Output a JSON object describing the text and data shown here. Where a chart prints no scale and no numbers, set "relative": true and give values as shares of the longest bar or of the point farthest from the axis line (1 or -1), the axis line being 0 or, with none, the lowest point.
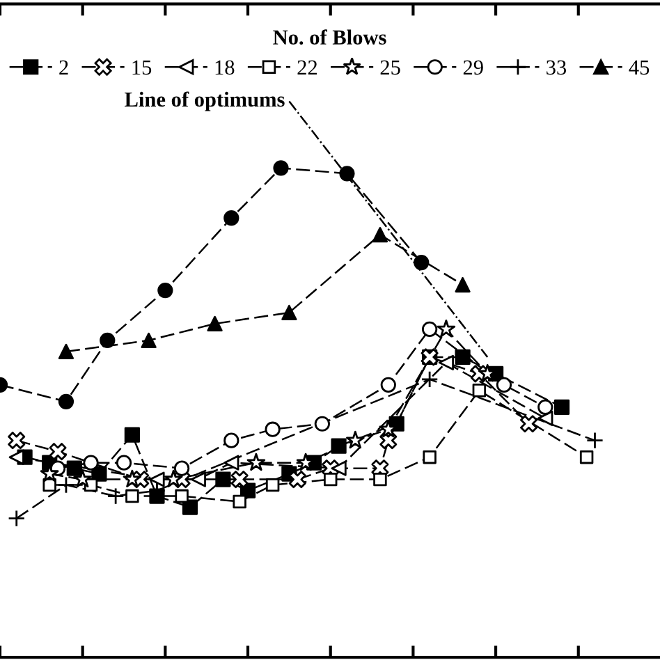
{
  "chart_data": {
    "type": "line",
    "relative": true,
    "legend_title": "No. of Blows",
    "legend": "top",
    "grid": false,
    "line_style": "dashed",
    "categories": [
      null,
      null,
      null,
      null,
      null,
      null,
      null,
      null,
      null,
      null,
      null,
      null,
      null,
      null,
      null,
      null,
      null,
      null,
      null,
      null,
      null,
      null,
      null,
      null,
      null,
      null,
      null,
      null,
      null,
      null,
      null,
      null,
      null,
      null,
      null,
      null,
      null,
      null,
      null,
      null,
      null,
      null,
      null,
      null,
      null,
      null,
      null,
      null,
      null,
      null,
      null,
      null,
      null,
      null,
      null,
      null,
      null,
      null,
      null,
      null,
      null,
      null,
      null,
      null,
      null,
      null,
      null,
      null,
      null,
      null,
      null,
      null,
      null,
      null,
      null,
      null,
      null,
      null,
      null,
      null
    ],
    "series": [
      {
        "name": "2",
        "color": "#000000",
        "marker": "square",
        "values": [
          null,
          null,
          null,
          0.36,
          null,
          null,
          0.35,
          null,
          null,
          0.34,
          null,
          null,
          0.33,
          null,
          null,
          null,
          0.4,
          null,
          null,
          0.29,
          null,
          null,
          null,
          0.27,
          null,
          null,
          null,
          0.32,
          null,
          null,
          0.3,
          null,
          null,
          null,
          null,
          0.33,
          null,
          null,
          0.35,
          null,
          null,
          0.38,
          null,
          null,
          null,
          null,
          null,
          null,
          0.42,
          null,
          null,
          null,
          0.54,
          null,
          null,
          null,
          0.54,
          null,
          null,
          null,
          0.51,
          null,
          null,
          null,
          null,
          null,
          null,
          null,
          0.45,
          null,
          null,
          null,
          null,
          null,
          null,
          null,
          null,
          null,
          null,
          null
        ]
      },
      {
        "name": "15",
        "color": "#000000",
        "marker": "cross",
        "values": [
          null,
          null,
          0.39,
          null,
          null,
          null,
          null,
          0.37,
          null,
          null,
          null,
          null,
          null,
          null,
          null,
          null,
          null,
          0.32,
          null,
          null,
          null,
          null,
          0.32,
          null,
          null,
          null,
          null,
          null,
          null,
          0.32,
          null,
          null,
          null,
          null,
          null,
          null,
          0.32,
          null,
          null,
          null,
          0.34,
          null,
          null,
          null,
          null,
          null,
          0.34,
          0.39,
          null,
          null,
          null,
          null,
          0.54,
          null,
          null,
          null,
          null,
          null,
          0.51,
          null,
          null,
          null,
          null,
          null,
          0.42,
          null,
          null,
          null,
          null,
          null,
          null,
          null,
          null,
          null,
          null,
          null,
          null,
          null,
          null,
          null
        ]
      },
      {
        "name": "18",
        "color": "#000000",
        "marker": "triangle_left_open",
        "values": [
          null,
          null,
          0.36,
          null,
          null,
          null,
          null,
          null,
          null,
          null,
          null,
          null,
          null,
          null,
          null,
          null,
          null,
          null,
          null,
          0.32,
          null,
          null,
          null,
          null,
          0.32,
          null,
          null,
          null,
          0.35,
          null,
          null,
          null,
          null,
          null,
          null,
          null,
          null,
          null,
          null,
          null,
          null,
          0.34,
          null,
          null,
          null,
          null,
          null,
          null,
          null,
          null,
          null,
          null,
          null,
          null,
          0.53,
          null,
          null,
          null,
          null,
          null,
          null,
          null,
          null,
          null,
          null,
          null,
          0.43,
          null,
          null,
          null,
          null,
          null,
          null,
          null,
          null,
          null,
          null,
          null,
          null,
          null
        ]
      },
      {
        "name": "22",
        "color": "#000000",
        "marker": "square_open",
        "values": [
          null,
          null,
          null,
          null,
          null,
          null,
          0.31,
          null,
          null,
          null,
          null,
          0.31,
          null,
          null,
          null,
          null,
          0.29,
          null,
          null,
          null,
          null,
          null,
          0.29,
          null,
          null,
          null,
          null,
          null,
          null,
          0.28,
          null,
          null,
          null,
          0.31,
          null,
          null,
          null,
          null,
          null,
          null,
          0.32,
          null,
          null,
          null,
          null,
          null,
          0.32,
          null,
          null,
          null,
          null,
          null,
          0.36,
          null,
          null,
          null,
          null,
          null,
          0.48,
          null,
          null,
          null,
          null,
          null,
          null,
          null,
          null,
          null,
          null,
          null,
          null,
          0.36,
          null,
          null,
          null,
          null,
          null,
          null,
          null,
          null
        ]
      },
      {
        "name": "25",
        "color": "#000000",
        "marker": "star_open",
        "values": [
          null,
          null,
          null,
          null,
          null,
          null,
          0.33,
          null,
          null,
          null,
          0.32,
          null,
          null,
          null,
          null,
          null,
          0.32,
          null,
          null,
          null,
          null,
          0.32,
          null,
          null,
          null,
          null,
          null,
          null,
          null,
          null,
          null,
          0.35,
          null,
          null,
          null,
          null,
          null,
          0.35,
          null,
          null,
          null,
          null,
          null,
          0.39,
          null,
          null,
          null,
          0.41,
          null,
          null,
          null,
          null,
          null,
          null,
          0.59,
          null,
          null,
          null,
          null,
          0.51,
          null,
          null,
          null,
          null,
          null,
          null,
          null,
          null,
          null,
          null,
          null,
          null,
          null,
          null,
          null,
          null,
          null,
          null,
          null,
          null
        ]
      },
      {
        "name": "29",
        "color": "#000000",
        "marker": "circle_open",
        "values": [
          null,
          null,
          null,
          null,
          null,
          null,
          null,
          0.34,
          null,
          null,
          null,
          0.35,
          null,
          null,
          null,
          0.35,
          null,
          null,
          null,
          null,
          null,
          null,
          0.34,
          null,
          null,
          null,
          null,
          null,
          0.39,
          null,
          null,
          null,
          null,
          0.41,
          null,
          null,
          null,
          null,
          null,
          0.42,
          null,
          null,
          null,
          null,
          null,
          null,
          null,
          0.49,
          null,
          null,
          null,
          null,
          0.59,
          null,
          null,
          null,
          null,
          null,
          null,
          null,
          null,
          0.49,
          null,
          null,
          null,
          null,
          0.45,
          null,
          null,
          null,
          null,
          null,
          null,
          null,
          null,
          null,
          null,
          null,
          null,
          null
        ]
      },
      {
        "name": "33",
        "color": "#000000",
        "marker": "plus",
        "values": [
          null,
          null,
          0.25,
          null,
          null,
          null,
          null,
          null,
          0.31,
          null,
          null,
          null,
          null,
          null,
          0.29,
          null,
          null,
          null,
          null,
          0.3,
          null,
          null,
          null,
          null,
          null,
          null,
          null,
          null,
          null,
          null,
          null,
          null,
          null,
          null,
          null,
          null,
          null,
          null,
          null,
          null,
          null,
          null,
          null,
          null,
          null,
          null,
          null,
          null,
          null,
          null,
          null,
          null,
          0.5,
          null,
          null,
          null,
          null,
          null,
          null,
          null,
          null,
          null,
          null,
          null,
          null,
          null,
          null,
          null,
          null,
          null,
          null,
          null,
          0.39,
          null,
          null,
          null,
          null,
          null,
          null,
          null
        ]
      },
      {
        "name": "45",
        "color": "#000000",
        "marker": "triangle",
        "values": [
          null,
          null,
          null,
          null,
          null,
          null,
          null,
          null,
          0.55,
          null,
          null,
          null,
          null,
          null,
          null,
          null,
          null,
          null,
          0.57,
          null,
          null,
          null,
          null,
          null,
          null,
          null,
          0.6,
          null,
          null,
          null,
          null,
          null,
          null,
          null,
          null,
          0.62,
          null,
          null,
          null,
          null,
          null,
          null,
          null,
          null,
          null,
          null,
          0.76,
          null,
          null,
          null,
          null,
          null,
          null,
          null,
          null,
          null,
          0.67,
          null,
          null,
          null,
          null,
          null,
          null,
          null,
          null,
          null,
          null,
          null,
          null,
          null,
          null,
          null,
          null,
          null,
          null,
          null,
          null,
          null,
          null,
          null
        ]
      },
      {
        "color": "#000000",
        "marker": "circle",
        "values": [
          0.49,
          null,
          null,
          null,
          null,
          null,
          null,
          null,
          0.46,
          null,
          null,
          null,
          null,
          0.57,
          null,
          null,
          null,
          null,
          null,
          null,
          0.66,
          null,
          null,
          null,
          null,
          null,
          null,
          null,
          0.79,
          null,
          null,
          null,
          null,
          null,
          0.88,
          null,
          null,
          null,
          null,
          null,
          null,
          null,
          0.87,
          null,
          null,
          null,
          null,
          null,
          null,
          null,
          null,
          0.71,
          null,
          null,
          null,
          null,
          null,
          null,
          null,
          null,
          null,
          null,
          null,
          null,
          null,
          null,
          null,
          null,
          null,
          null,
          null,
          null,
          null,
          null,
          null,
          null,
          null,
          null,
          null,
          null
        ]
      },
      {
        "name": "Line of optimums",
        "color": "#000000",
        "marker": "none",
        "line_style": "dashdot",
        "values": [
          null,
          null,
          null,
          null,
          null,
          null,
          null,
          null,
          null,
          null,
          null,
          null,
          null,
          null,
          null,
          null,
          null,
          null,
          null,
          null,
          null,
          null,
          null,
          null,
          null,
          null,
          null,
          null,
          null,
          null,
          null,
          null,
          null,
          null,
          null,
          1,
          null,
          null,
          null,
          null,
          null,
          null,
          null,
          null,
          null,
          null,
          null,
          null,
          null,
          null,
          null,
          null,
          null,
          null,
          null,
          null,
          null,
          null,
          null,
          0.54,
          null,
          null,
          null,
          null,
          null,
          null,
          null,
          null,
          null,
          null,
          null,
          null,
          null,
          null,
          null,
          null,
          null,
          null,
          null,
          null
        ]
      }
    ]
  }
}
